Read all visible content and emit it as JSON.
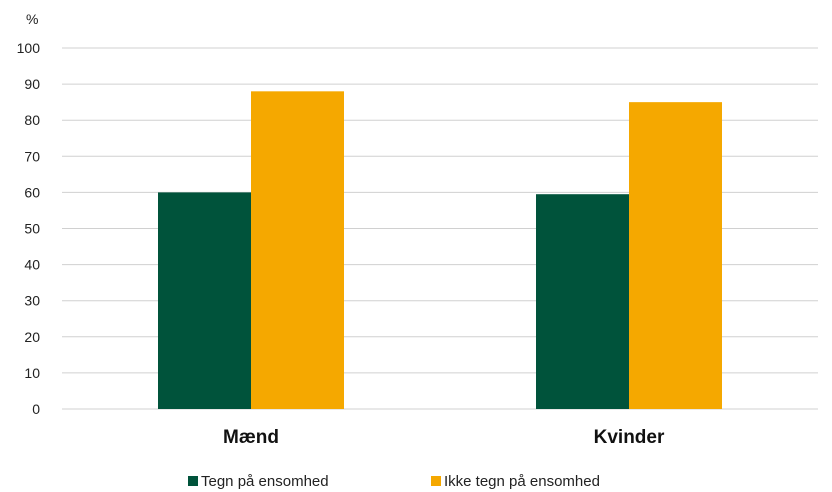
{
  "chart_data": {
    "type": "bar",
    "unit_label": "%",
    "categories": [
      "Mænd",
      "Kvinder"
    ],
    "series": [
      {
        "name": "Tegn på ensomhed",
        "values": [
          60,
          59.5
        ],
        "color": "#00533b"
      },
      {
        "name": "Ikke tegn på ensomhed",
        "values": [
          88,
          85
        ],
        "color": "#f5a800"
      }
    ],
    "ylim": [
      0,
      100
    ],
    "yticks": [
      0,
      10,
      20,
      30,
      40,
      50,
      60,
      70,
      80,
      90,
      100
    ],
    "grid": true,
    "legend_position": "bottom",
    "gridline_color": "#d0d0d0"
  }
}
